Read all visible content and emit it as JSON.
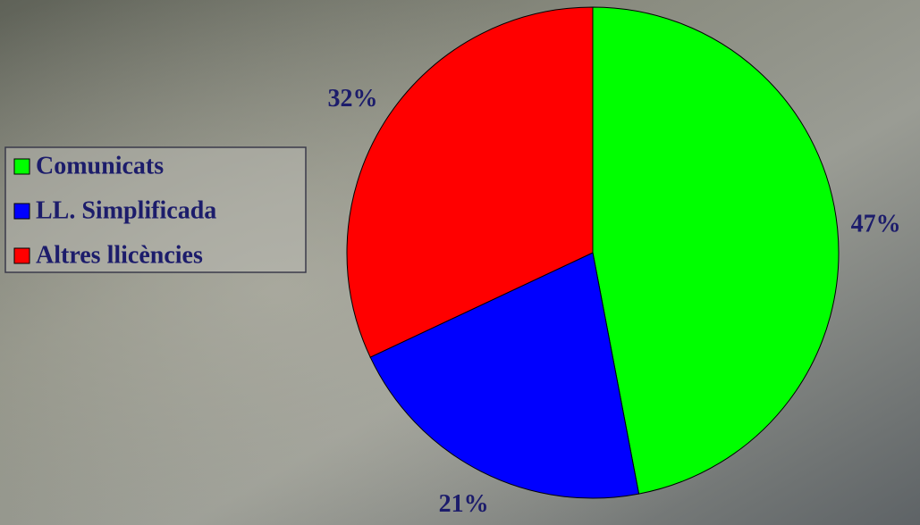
{
  "chart_data": {
    "type": "pie",
    "categories": [
      "Comunicats",
      "LL. Simplificada",
      "Altres llicències"
    ],
    "values": [
      47,
      21,
      32
    ],
    "value_labels": [
      "47%",
      "21%",
      "32%"
    ],
    "colors": [
      "#00ff00",
      "#0000ff",
      "#ff0000"
    ],
    "legend": "left"
  }
}
